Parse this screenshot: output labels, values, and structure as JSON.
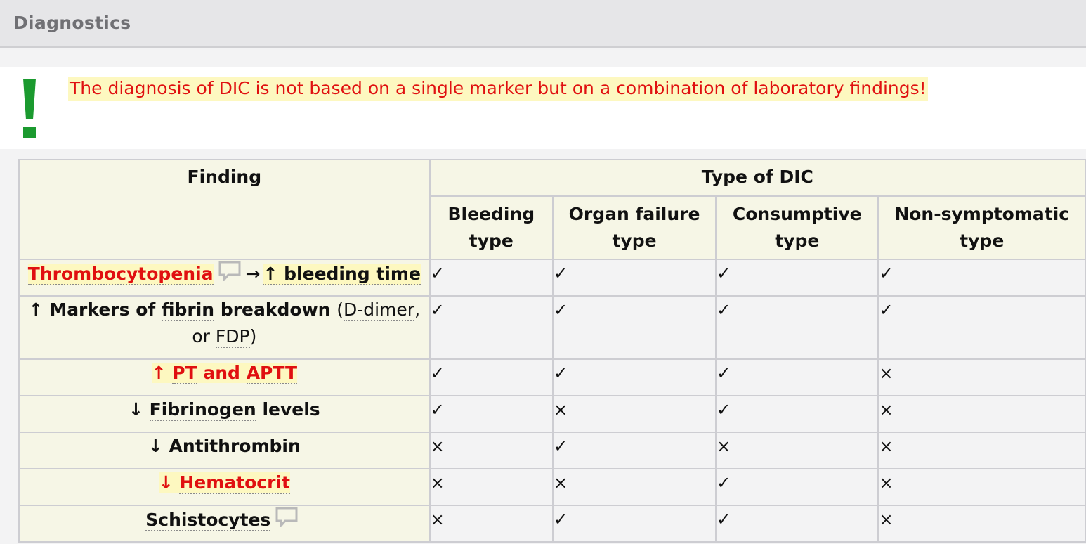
{
  "section": {
    "title": "Diagnostics"
  },
  "alert": {
    "text": "The diagnosis of DIC is not based on a single marker but on a combination of laboratory findings!",
    "icon": "exclamation-icon",
    "accent_color": "#1b9a2f",
    "text_color": "#e01010"
  },
  "table": {
    "finding_header": "Finding",
    "type_header": "Type of DIC",
    "types": [
      {
        "line1": "Bleeding",
        "line2": "type"
      },
      {
        "line1": "Organ failure",
        "line2": "type"
      },
      {
        "line1": "Consumptive",
        "line2": "type"
      },
      {
        "line1": "Non-symptomatic",
        "line2": "type"
      }
    ],
    "symbols": {
      "yes": "✓",
      "no": "×"
    },
    "rows": [
      {
        "finding": {
          "term": "Thrombocytopenia",
          "arrow_right": "→",
          "up": "↑",
          "rest": "bleeding time"
        },
        "values": [
          "✓",
          "✓",
          "✓",
          "✓"
        ]
      },
      {
        "finding": {
          "up": "↑",
          "part1": "Markers of",
          "fibrin": "fibrin",
          "part2": "breakdown",
          "paren_open": "(",
          "ddimer": "D-dimer",
          "comma": ",",
          "or": "or",
          "fdp": "FDP",
          "paren_close": ")"
        },
        "values": [
          "✓",
          "✓",
          "✓",
          "✓"
        ]
      },
      {
        "finding": {
          "up": "↑",
          "pt": "PT",
          "and": "and",
          "aptt": "APTT"
        },
        "values": [
          "✓",
          "✓",
          "✓",
          "×"
        ]
      },
      {
        "finding": {
          "down": "↓",
          "term": "Fibrinogen",
          "rest": "levels"
        },
        "values": [
          "✓",
          "×",
          "✓",
          "×"
        ]
      },
      {
        "finding": {
          "down": "↓",
          "term": "Antithrombin"
        },
        "values": [
          "×",
          "✓",
          "×",
          "×"
        ]
      },
      {
        "finding": {
          "down": "↓",
          "term": "Hematocrit"
        },
        "values": [
          "×",
          "×",
          "✓",
          "×"
        ]
      },
      {
        "finding": {
          "term": "Schistocytes"
        },
        "values": [
          "×",
          "✓",
          "✓",
          "×"
        ]
      }
    ]
  }
}
